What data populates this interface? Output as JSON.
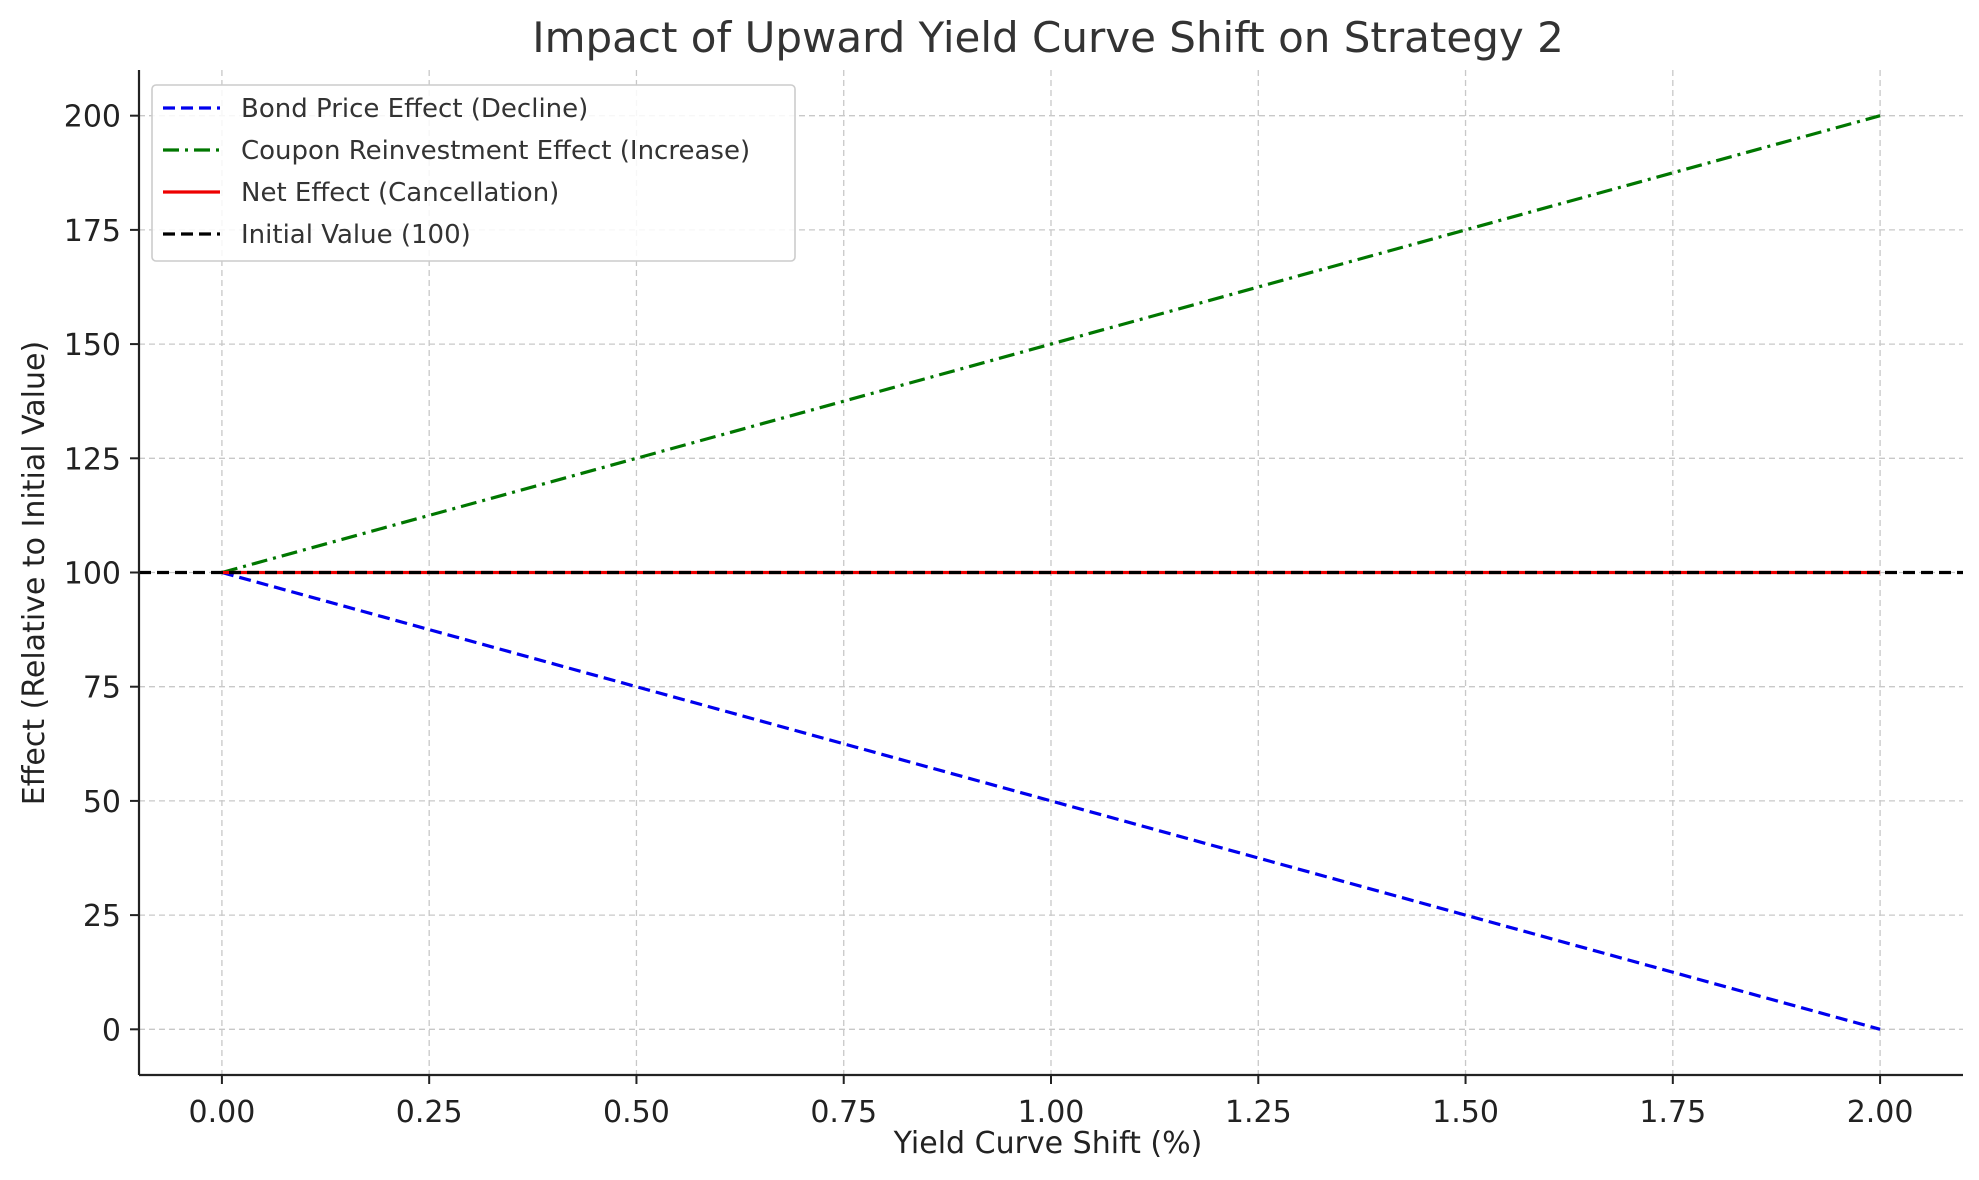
{
  "chart_data": {
    "type": "line",
    "title": "Impact of Upward Yield Curve Shift on Strategy 2",
    "xlabel": "Yield Curve Shift (%)",
    "ylabel": "Effect (Relative to Initial Value)",
    "xlim": [
      -0.1,
      2.1
    ],
    "ylim": [
      -10,
      210
    ],
    "x_ticks": [
      "0.00",
      "0.25",
      "0.50",
      "0.75",
      "1.00",
      "1.25",
      "1.50",
      "1.75",
      "2.00"
    ],
    "y_ticks": [
      "0",
      "25",
      "50",
      "75",
      "100",
      "125",
      "150",
      "175",
      "200"
    ],
    "grid": true,
    "legend_position": "top-left",
    "x": [
      0,
      0.5,
      1.0,
      1.5,
      2.0
    ],
    "series": [
      {
        "name": "Bond Price Effect (Decline)",
        "values": [
          100,
          75,
          50,
          25,
          0
        ],
        "color": "#0000ee",
        "style": "dashed"
      },
      {
        "name": "Coupon Reinvestment Effect (Increase)",
        "values": [
          100,
          125,
          150,
          175,
          200
        ],
        "color": "#007700",
        "style": "dashdot"
      },
      {
        "name": "Net Effect (Cancellation)",
        "values": [
          100,
          100,
          100,
          100,
          100
        ],
        "color": "#ee0000",
        "style": "solid"
      },
      {
        "name": "Initial Value (100)",
        "values": null,
        "hline": 100,
        "color": "#000000",
        "style": "dashed"
      }
    ]
  }
}
